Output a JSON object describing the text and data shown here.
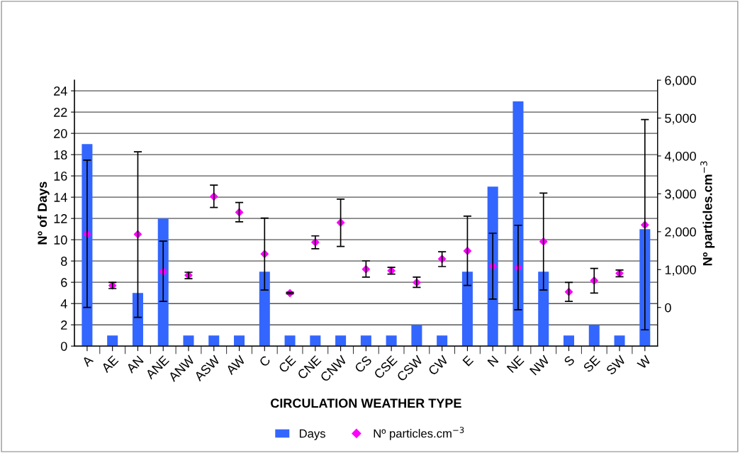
{
  "chart_data": {
    "type": "bar",
    "xlabel": "CIRCULATION WEATHER TYPE",
    "ylabel": "Nº of Days",
    "y2label": "Nº particles.cm$^{−3}$",
    "categories": [
      "A",
      "AE",
      "AN",
      "ANE",
      "ANW",
      "ASW",
      "AW",
      "C",
      "CE",
      "CNE",
      "CNW",
      "CS",
      "CSE",
      "CSW",
      "CW",
      "E",
      "N",
      "NE",
      "NW",
      "S",
      "SE",
      "SW",
      "W"
    ],
    "series": [
      {
        "name": "Days",
        "color": "#3366ff",
        "values": [
          19,
          1,
          5,
          12,
          1,
          1,
          1,
          7,
          1,
          1,
          1,
          1,
          1,
          2,
          1,
          7,
          15,
          23,
          7,
          1,
          2,
          1,
          11
        ]
      },
      {
        "name": "Nº particles.cm$^{−3}$",
        "type": "scatter",
        "axis": "y2",
        "color": "#ff00ff",
        "marker": "diamond",
        "values": [
          1940,
          580,
          1930,
          950,
          850,
          2930,
          2510,
          1410,
          380,
          1720,
          2240,
          1010,
          970,
          660,
          1280,
          1490,
          1090,
          1050,
          1740,
          410,
          710,
          900,
          2180
        ],
        "errors": [
          [
            0,
            3890
          ],
          [
            500,
            660
          ],
          [
            -260,
            4110
          ],
          [
            160,
            1750
          ],
          [
            760,
            930
          ],
          [
            2640,
            3230
          ],
          [
            2260,
            2770
          ],
          [
            460,
            2360
          ],
          [
            360,
            400
          ],
          [
            1550,
            1890
          ],
          [
            1610,
            2860
          ],
          [
            800,
            1230
          ],
          [
            880,
            1060
          ],
          [
            530,
            800
          ],
          [
            1080,
            1470
          ],
          [
            580,
            2410
          ],
          [
            220,
            1960
          ],
          [
            -60,
            2170
          ],
          [
            460,
            3020
          ],
          [
            160,
            660
          ],
          [
            380,
            1030
          ],
          [
            810,
            990
          ],
          [
            -590,
            4960
          ]
        ]
      }
    ],
    "ylim": [
      0,
      25
    ],
    "yticks": [
      0,
      2,
      4,
      6,
      8,
      10,
      12,
      14,
      16,
      18,
      20,
      22,
      24
    ],
    "y2lim": [
      -1020,
      6000
    ],
    "y2ticks": [
      {
        "value": 0,
        "label": "0"
      },
      {
        "value": 1000,
        "label": "1,000"
      },
      {
        "value": 2000,
        "label": "2,000"
      },
      {
        "value": 3000,
        "label": "3,000"
      },
      {
        "value": 4000,
        "label": "4,000"
      },
      {
        "value": 5000,
        "label": "5,000"
      },
      {
        "value": 6000,
        "label": "6,000"
      }
    ],
    "grid": "y",
    "legend": "bottom"
  }
}
